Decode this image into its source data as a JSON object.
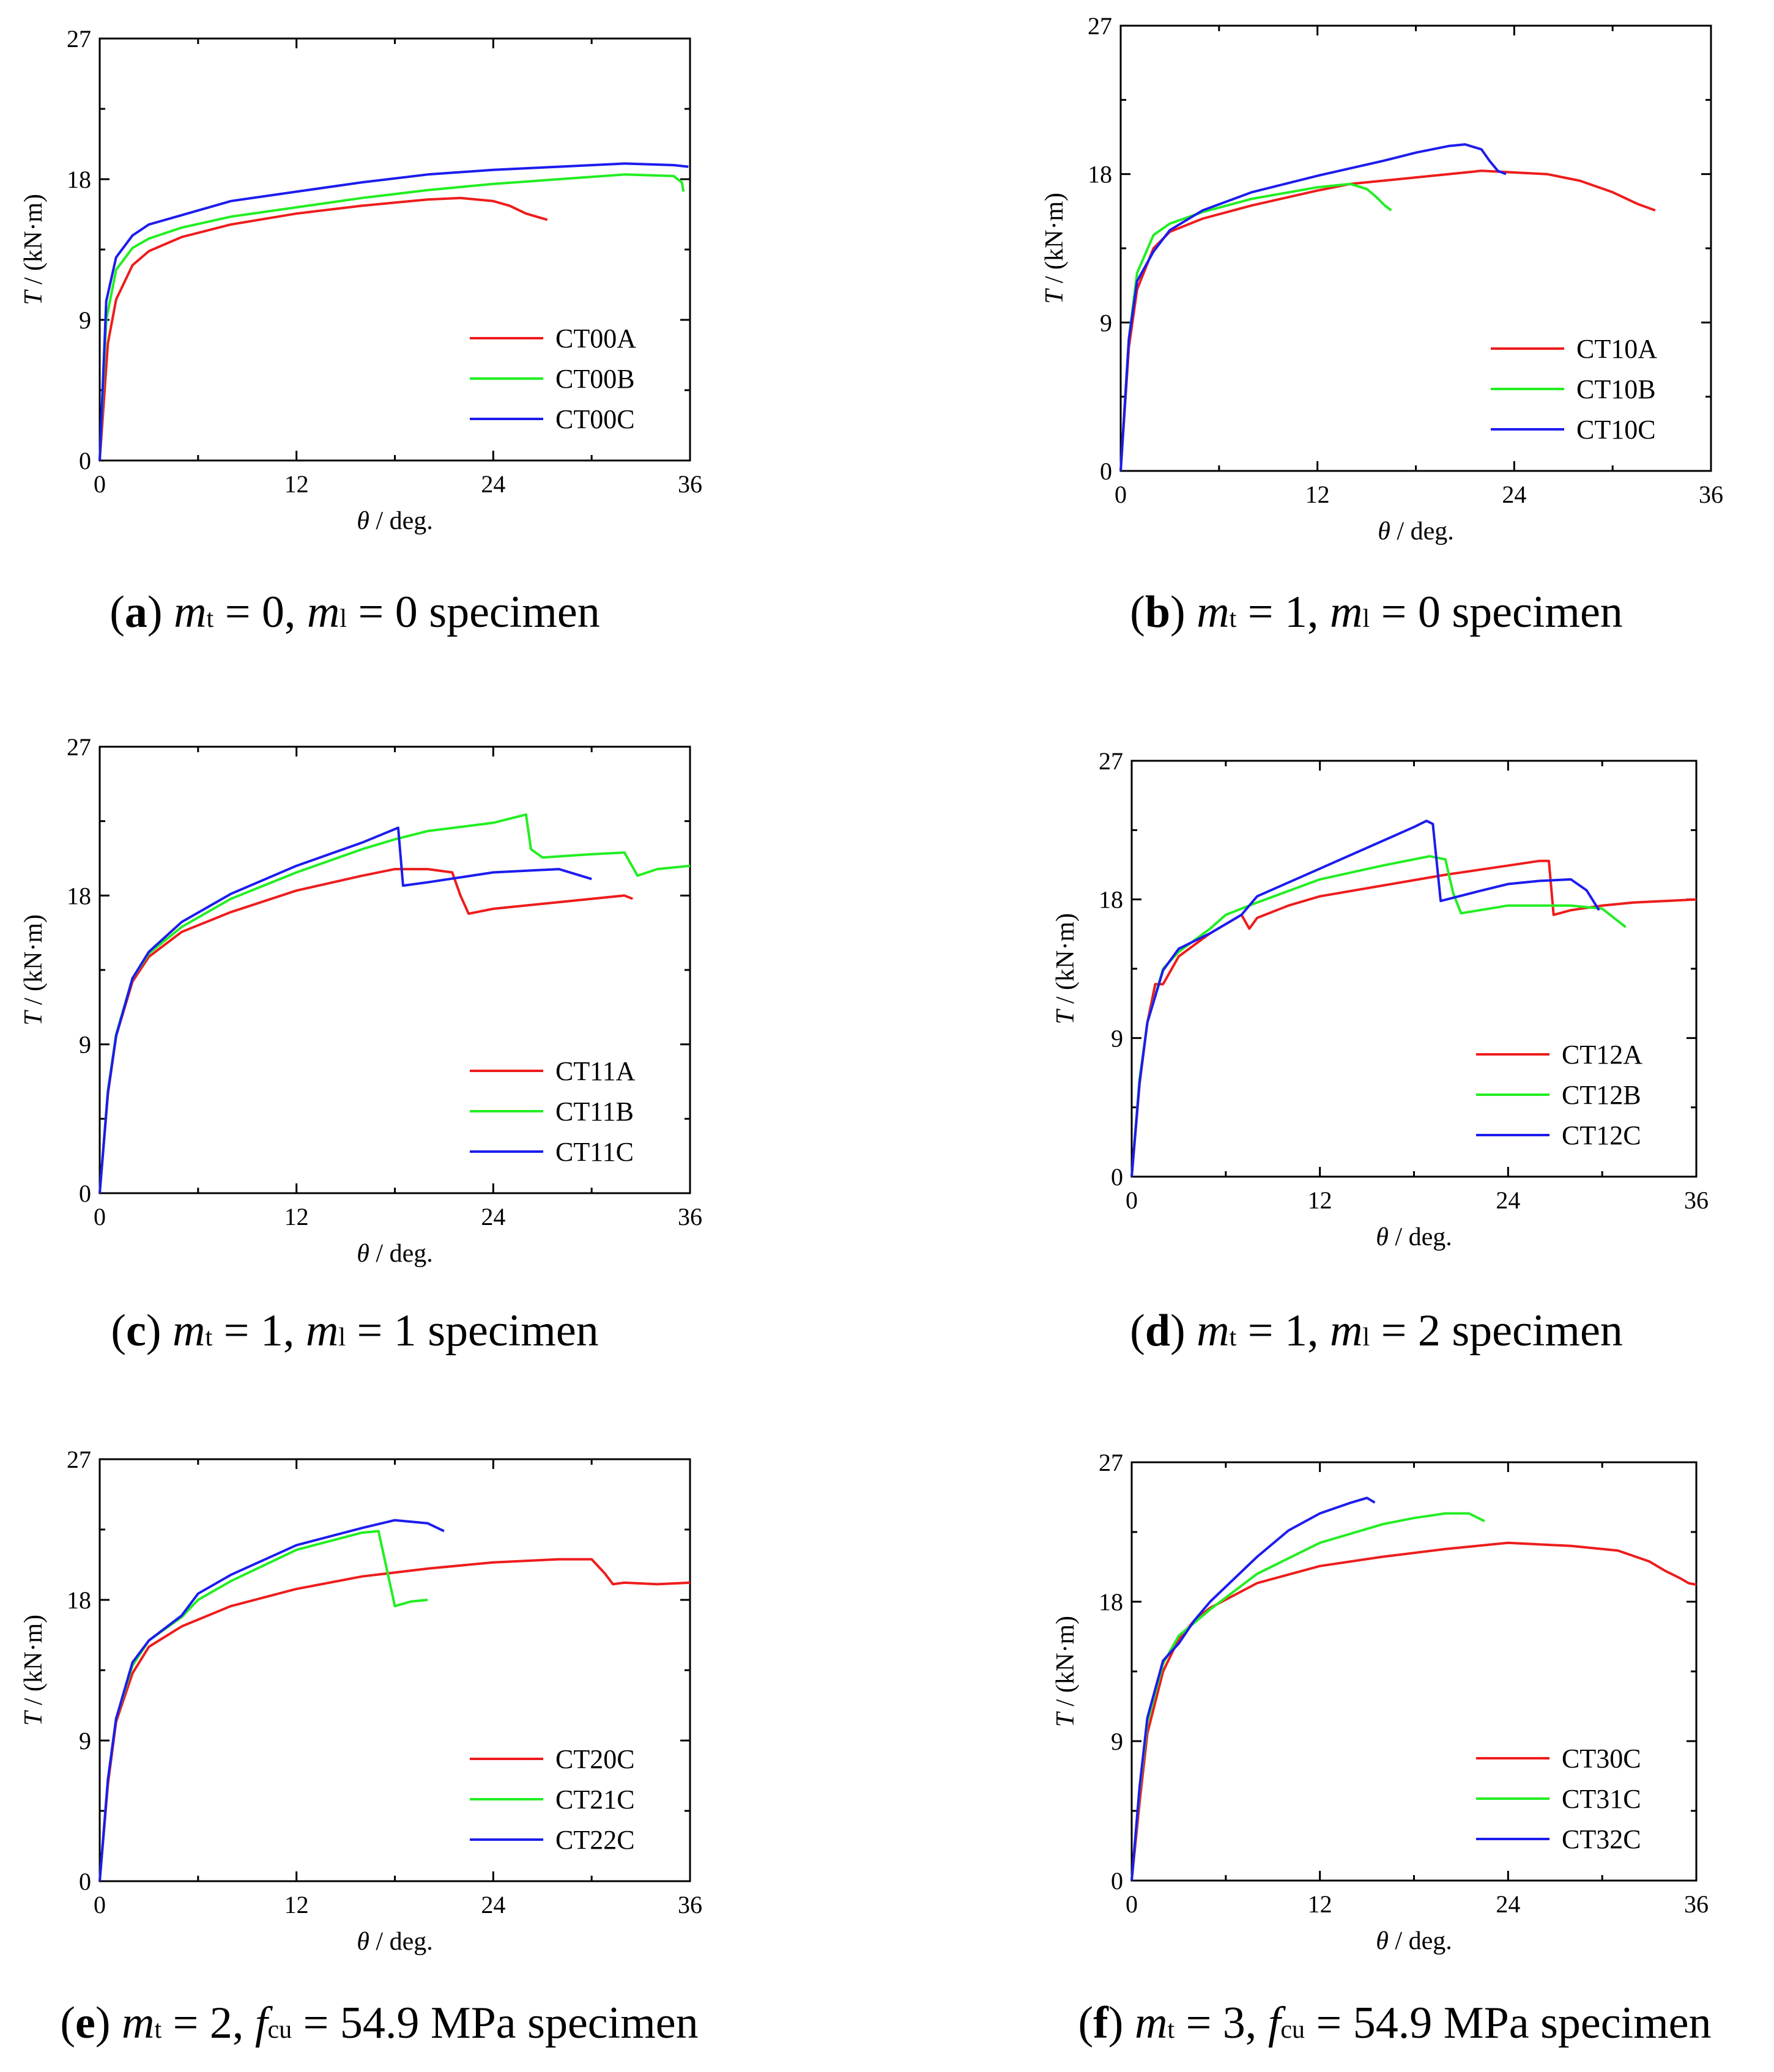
{
  "figure": {
    "description_none": true
  },
  "chart_data": [
    {
      "type": "line",
      "caption": {
        "letter": "a",
        "mt": "0",
        "ml": "0",
        "mid": ", ",
        "suffix": " specimen",
        "kind": "ml"
      },
      "xlabel": "θ / deg.",
      "ylabel": "T / (kN·m)",
      "xlim": [
        0,
        36
      ],
      "ylim": [
        0,
        27
      ],
      "xticks": [
        "0",
        "12",
        "24",
        "36"
      ],
      "yticks": [
        "0",
        "9",
        "18",
        "27"
      ],
      "series": [
        {
          "name": "CT00A",
          "color": "#ee1c1c",
          "x": [
            0,
            0.5,
            1,
            2,
            3,
            5,
            8,
            12,
            16,
            20,
            22,
            24,
            25,
            26,
            27.3
          ],
          "y": [
            0,
            7.5,
            10.3,
            12.5,
            13.4,
            14.3,
            15.1,
            15.8,
            16.3,
            16.7,
            16.8,
            16.6,
            16.3,
            15.8,
            15.4
          ]
        },
        {
          "name": "CT00B",
          "color": "#22ee22",
          "x": [
            0,
            0.4,
            1,
            2,
            3,
            5,
            8,
            12,
            16,
            20,
            24,
            28,
            32,
            35,
            35.5,
            35.6
          ],
          "y": [
            0,
            9.0,
            12.2,
            13.6,
            14.2,
            14.9,
            15.6,
            16.2,
            16.8,
            17.3,
            17.7,
            18.0,
            18.3,
            18.2,
            17.8,
            17.2
          ]
        },
        {
          "name": "CT00C",
          "color": "#1c1cee",
          "x": [
            0,
            0.4,
            1,
            2,
            3,
            5,
            8,
            12,
            16,
            20,
            24,
            28,
            32,
            35,
            35.9
          ],
          "y": [
            0,
            10.2,
            13.0,
            14.4,
            15.1,
            15.7,
            16.6,
            17.2,
            17.8,
            18.3,
            18.6,
            18.8,
            19.0,
            18.9,
            18.8
          ]
        }
      ],
      "legend": "lower-right"
    },
    {
      "type": "line",
      "caption": {
        "letter": "b",
        "mt": "1",
        "ml": "0",
        "mid": ", ",
        "suffix": " specimen",
        "kind": "ml"
      },
      "xlabel": "θ / deg.",
      "ylabel": "T / (kN·m)",
      "xlim": [
        0,
        36
      ],
      "ylim": [
        0,
        27
      ],
      "xticks": [
        "0",
        "12",
        "24",
        "36"
      ],
      "yticks": [
        "0",
        "9",
        "18",
        "27"
      ],
      "series": [
        {
          "name": "CT10A",
          "color": "#ee1c1c",
          "x": [
            0,
            0.5,
            1,
            2,
            3,
            5,
            8,
            12,
            14,
            16,
            18,
            20,
            22,
            24,
            26,
            28,
            30,
            31.5,
            32.6
          ],
          "y": [
            0,
            7.5,
            11.0,
            13.5,
            14.5,
            15.3,
            16.1,
            17.0,
            17.4,
            17.6,
            17.8,
            18.0,
            18.2,
            18.1,
            18.0,
            17.6,
            16.9,
            16.2,
            15.8
          ]
        },
        {
          "name": "CT10B",
          "color": "#22ee22",
          "x": [
            0,
            0.5,
            1,
            2,
            3,
            5,
            8,
            12,
            14,
            15,
            15.6,
            16.1,
            16.5
          ],
          "y": [
            0,
            8.0,
            12.0,
            14.3,
            15.0,
            15.7,
            16.5,
            17.2,
            17.4,
            17.1,
            16.6,
            16.1,
            15.8
          ]
        },
        {
          "name": "CT10C",
          "color": "#1c1cee",
          "x": [
            0,
            0.5,
            1,
            2,
            3,
            5,
            8,
            12,
            16,
            18,
            20,
            21,
            22,
            22.5,
            23,
            23.5
          ],
          "y": [
            0,
            8.0,
            11.5,
            13.3,
            14.6,
            15.8,
            16.9,
            17.9,
            18.8,
            19.3,
            19.7,
            19.8,
            19.5,
            18.8,
            18.2,
            18.0
          ]
        }
      ],
      "legend": "lower-right"
    },
    {
      "type": "line",
      "caption": {
        "letter": "c",
        "mt": "1",
        "ml": "1",
        "mid": ", ",
        "suffix": " specimen",
        "kind": "ml"
      },
      "xlabel": "θ / deg.",
      "ylabel": "T / (kN·m)",
      "xlim": [
        0,
        36
      ],
      "ylim": [
        0,
        27
      ],
      "xticks": [
        "0",
        "12",
        "24",
        "36"
      ],
      "yticks": [
        "0",
        "9",
        "18",
        "27"
      ],
      "series": [
        {
          "name": "CT11A",
          "color": "#ee1c1c",
          "x": [
            0,
            0.5,
            1,
            2,
            3,
            5,
            8,
            12,
            16,
            18,
            20,
            21.5,
            22,
            22.5,
            24,
            28,
            32,
            32.5
          ],
          "y": [
            0,
            6.0,
            9.5,
            12.8,
            14.3,
            15.8,
            17.0,
            18.3,
            19.2,
            19.6,
            19.6,
            19.4,
            18.0,
            16.9,
            17.2,
            17.6,
            18.0,
            17.8
          ]
        },
        {
          "name": "CT11B",
          "color": "#22ee22",
          "x": [
            0,
            0.5,
            1,
            2,
            3,
            5,
            8,
            12,
            16,
            18,
            20,
            24,
            26,
            26.3,
            27,
            30,
            32,
            32.8,
            34,
            36
          ],
          "y": [
            0,
            6.2,
            9.6,
            13.0,
            14.5,
            16.1,
            17.8,
            19.4,
            20.8,
            21.4,
            21.9,
            22.4,
            22.9,
            20.8,
            20.3,
            20.5,
            20.6,
            19.2,
            19.6,
            19.8
          ]
        },
        {
          "name": "CT11C",
          "color": "#1c1cee",
          "x": [
            0,
            0.5,
            1,
            2,
            3,
            5,
            8,
            12,
            16,
            18.2,
            18.5,
            20,
            24,
            28,
            30
          ],
          "y": [
            0,
            6.1,
            9.5,
            13.0,
            14.6,
            16.4,
            18.1,
            19.8,
            21.2,
            22.1,
            18.6,
            18.8,
            19.4,
            19.6,
            19.0
          ]
        }
      ],
      "legend": "lower-right"
    },
    {
      "type": "line",
      "caption": {
        "letter": "d",
        "mt": "1",
        "ml": "2",
        "mid": ", ",
        "suffix": " specimen",
        "kind": "ml"
      },
      "xlabel": "θ / deg.",
      "ylabel": "T / (kN·m)",
      "xlim": [
        0,
        36
      ],
      "ylim": [
        0,
        27
      ],
      "xticks": [
        "0",
        "12",
        "24",
        "36"
      ],
      "yticks": [
        "0",
        "9",
        "18",
        "27"
      ],
      "series": [
        {
          "name": "CT12A",
          "color": "#ee1c1c",
          "x": [
            0,
            0.5,
            1,
            1.5,
            2,
            3,
            5,
            7,
            7.5,
            8,
            10,
            12,
            16,
            20,
            24,
            26,
            26.6,
            26.9,
            28,
            30,
            32,
            34,
            36
          ],
          "y": [
            0,
            6.0,
            10.0,
            12.5,
            12.5,
            14.3,
            15.8,
            17.0,
            16.1,
            16.8,
            17.6,
            18.2,
            18.9,
            19.6,
            20.2,
            20.5,
            20.5,
            17.0,
            17.3,
            17.6,
            17.8,
            17.9,
            18.0
          ]
        },
        {
          "name": "CT12B",
          "color": "#22ee22",
          "x": [
            0,
            0.5,
            1,
            2,
            3,
            5,
            6,
            8,
            12,
            16,
            19,
            20,
            20.5,
            21,
            24,
            28,
            30,
            31.5
          ],
          "y": [
            0,
            6.3,
            10.0,
            13.5,
            14.6,
            16.1,
            17.0,
            17.8,
            19.3,
            20.2,
            20.8,
            20.6,
            18.4,
            17.1,
            17.6,
            17.6,
            17.4,
            16.2
          ]
        },
        {
          "name": "CT12C",
          "color": "#1c1cee",
          "x": [
            0,
            0.5,
            1,
            2,
            3,
            5,
            7,
            8,
            12,
            16,
            18,
            18.8,
            19.2,
            19.7,
            22,
            24,
            26,
            28,
            29,
            29.8
          ],
          "y": [
            0,
            6.1,
            10.0,
            13.4,
            14.8,
            15.8,
            17.0,
            18.2,
            20.0,
            21.8,
            22.7,
            23.1,
            22.9,
            17.9,
            18.5,
            19.0,
            19.2,
            19.3,
            18.6,
            17.3
          ]
        }
      ],
      "legend": "lower-right"
    },
    {
      "type": "line",
      "caption": {
        "letter": "e",
        "mt": "2",
        "ml": "",
        "mid": ", ",
        "suffix": " = 54.9 MPa specimen",
        "kind": "fcu"
      },
      "xlabel": "θ / deg.",
      "ylabel": "T / (kN·m)",
      "xlim": [
        0,
        36
      ],
      "ylim": [
        0,
        27
      ],
      "xticks": [
        "0",
        "12",
        "24",
        "36"
      ],
      "yticks": [
        "0",
        "9",
        "18",
        "27"
      ],
      "series": [
        {
          "name": "CT20C",
          "color": "#ee1c1c",
          "x": [
            0,
            0.5,
            1,
            2,
            3,
            5,
            8,
            12,
            16,
            20,
            24,
            28,
            30,
            30.8,
            31.3,
            32,
            34,
            36
          ],
          "y": [
            0,
            6.2,
            10.2,
            13.3,
            15.0,
            16.3,
            17.6,
            18.7,
            19.5,
            20.0,
            20.4,
            20.6,
            20.6,
            19.7,
            19.0,
            19.1,
            19.0,
            19.1
          ]
        },
        {
          "name": "CT21C",
          "color": "#22ee22",
          "x": [
            0,
            0.5,
            1,
            2,
            3,
            5,
            6,
            8,
            12,
            16,
            17,
            17.5,
            18,
            19,
            20
          ],
          "y": [
            0,
            6.5,
            10.4,
            13.8,
            15.4,
            16.9,
            18.0,
            19.2,
            21.2,
            22.3,
            22.4,
            20.0,
            17.6,
            17.9,
            18.0
          ]
        },
        {
          "name": "CT22C",
          "color": "#1c1cee",
          "x": [
            0,
            0.5,
            1,
            2,
            3,
            5,
            6,
            8,
            12,
            16,
            18,
            20,
            21
          ],
          "y": [
            0,
            6.5,
            10.4,
            14.0,
            15.4,
            17.0,
            18.4,
            19.6,
            21.5,
            22.6,
            23.1,
            22.9,
            22.4
          ]
        }
      ],
      "legend": "lower-right"
    },
    {
      "type": "line",
      "caption": {
        "letter": "f",
        "mt": "3",
        "ml": "",
        "mid": ", ",
        "suffix": " = 54.9 MPa specimen",
        "kind": "fcu"
      },
      "xlabel": "θ / deg.",
      "ylabel": "T / (kN·m)",
      "xlim": [
        0,
        36
      ],
      "ylim": [
        0,
        27
      ],
      "xticks": [
        "0",
        "12",
        "24",
        "36"
      ],
      "yticks": [
        "0",
        "9",
        "18",
        "27"
      ],
      "series": [
        {
          "name": "CT30C",
          "color": "#ee1c1c",
          "x": [
            0,
            0.5,
            1,
            2,
            3,
            4,
            5,
            8,
            12,
            16,
            20,
            24,
            28,
            31,
            33,
            34,
            35,
            35.5,
            36
          ],
          "y": [
            0,
            5.0,
            9.5,
            13.5,
            15.6,
            16.8,
            17.6,
            19.2,
            20.3,
            20.9,
            21.4,
            21.8,
            21.6,
            21.3,
            20.6,
            20.0,
            19.5,
            19.2,
            19.1
          ]
        },
        {
          "name": "CT31C",
          "color": "#22ee22",
          "x": [
            0,
            0.5,
            1,
            2,
            3,
            5,
            8,
            12,
            16,
            18,
            20,
            21.5,
            22.5
          ],
          "y": [
            0,
            5.8,
            10.2,
            14.0,
            15.8,
            17.5,
            19.8,
            21.8,
            23.0,
            23.4,
            23.7,
            23.7,
            23.2
          ]
        },
        {
          "name": "CT32C",
          "color": "#1c1cee",
          "x": [
            0,
            0.5,
            1,
            2,
            3,
            4,
            5,
            8,
            10,
            12,
            14,
            15,
            15.5
          ],
          "y": [
            0,
            6.0,
            10.5,
            14.2,
            15.3,
            16.8,
            18.0,
            20.9,
            22.6,
            23.7,
            24.4,
            24.7,
            24.4
          ]
        }
      ],
      "legend": "lower-right"
    }
  ]
}
